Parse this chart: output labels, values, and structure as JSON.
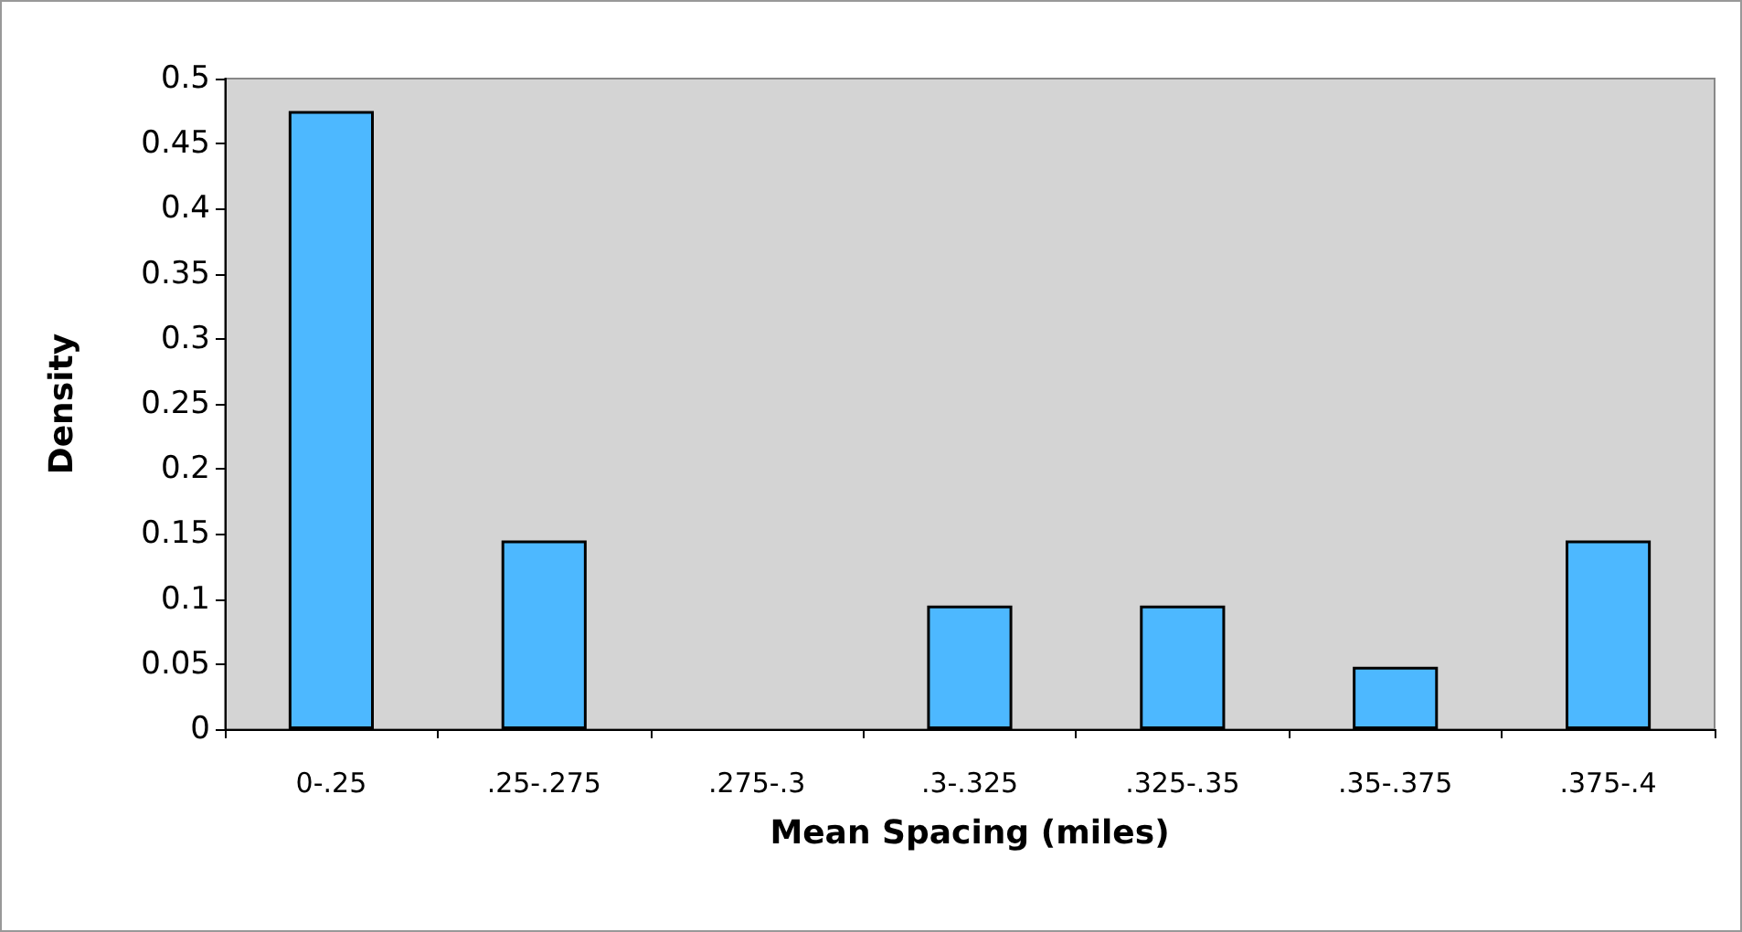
{
  "chart_data": {
    "type": "bar",
    "xlabel": "Mean Spacing (miles)",
    "ylabel": "Density",
    "categories": [
      "0-.25",
      ".25-.275",
      ".275-.3",
      ".3-.325",
      ".325-.35",
      ".35-.375",
      ".375-.4"
    ],
    "values": [
      0.475,
      0.145,
      0,
      0.095,
      0.095,
      0.048,
      0.145
    ],
    "color": "#4db8ff",
    "ylim": [
      0,
      0.5
    ],
    "yticks": [
      0,
      0.05,
      0.1,
      0.15,
      0.2,
      0.25,
      0.3,
      0.35,
      0.4,
      0.45,
      0.5
    ],
    "grid": false
  }
}
